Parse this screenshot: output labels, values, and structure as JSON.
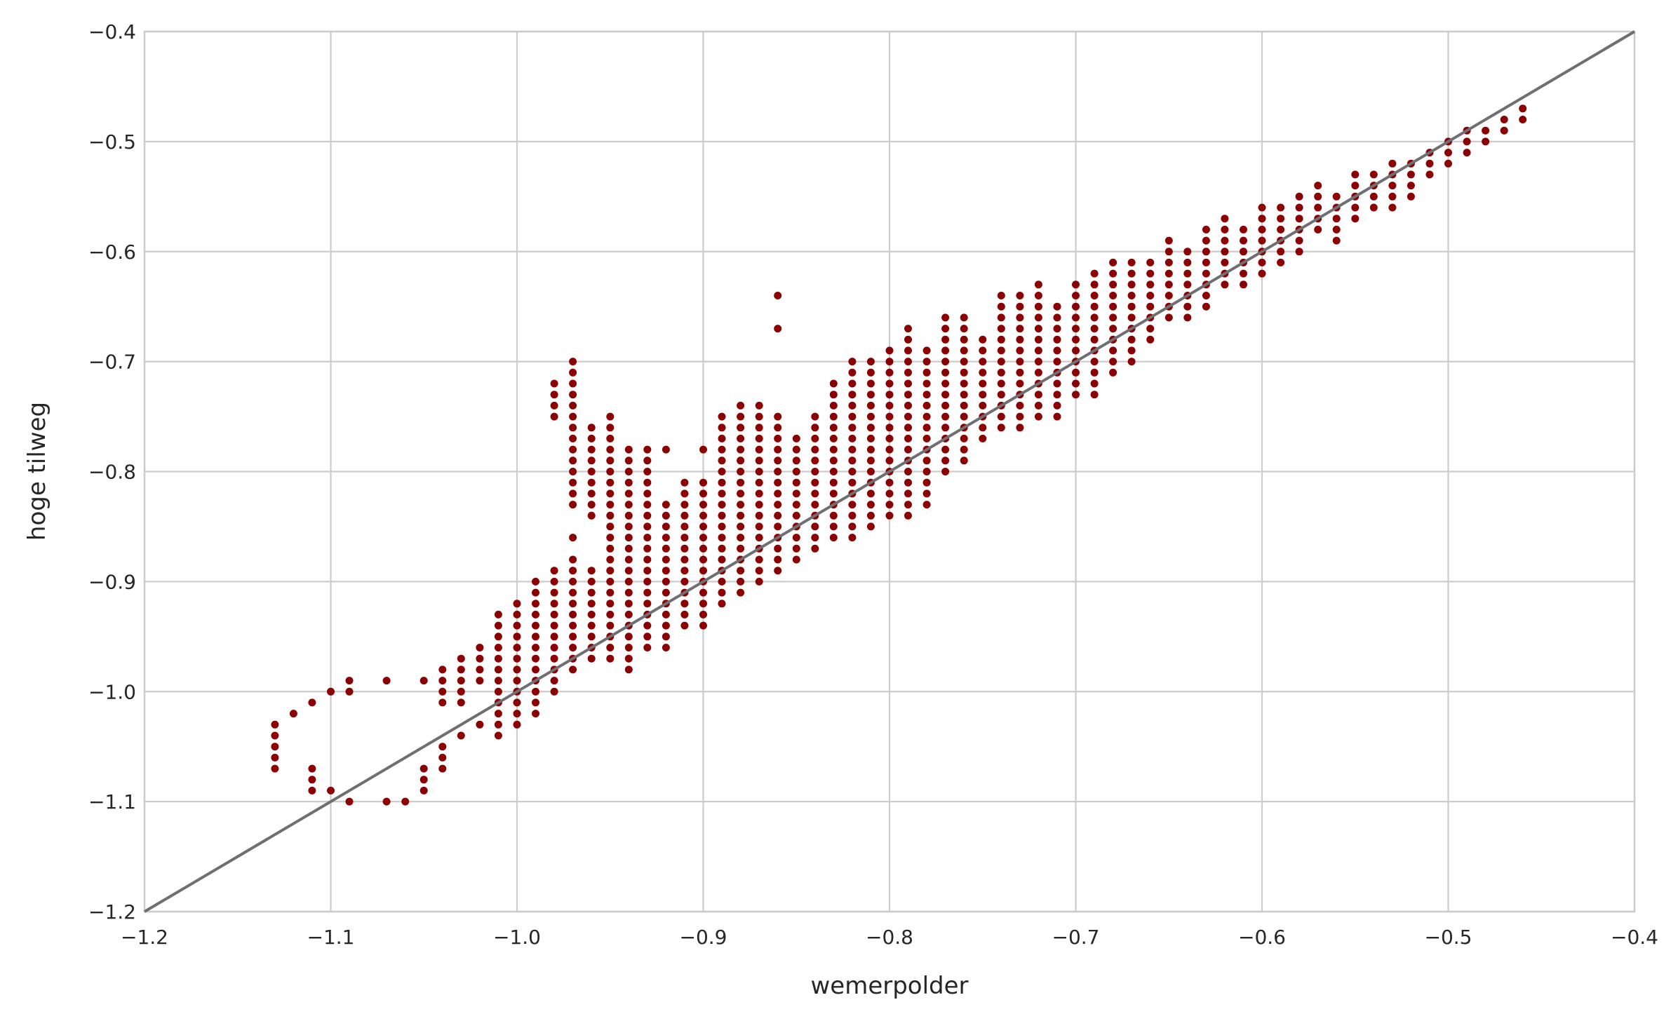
{
  "chart_data": {
    "type": "scatter",
    "title": "",
    "xlabel": "wemerpolder",
    "ylabel": "hoge tilweg",
    "xlim": [
      -1.2,
      -0.4
    ],
    "ylim": [
      -1.2,
      -0.4
    ],
    "xticks": [
      -1.2,
      -1.1,
      -1.0,
      -0.9,
      -0.8,
      -0.7,
      -0.6,
      -0.5,
      -0.4
    ],
    "yticks": [
      -1.2,
      -1.1,
      -1.0,
      -0.9,
      -0.8,
      -0.7,
      -0.6,
      -0.5,
      -0.4
    ],
    "xtick_labels": [
      "−1.2",
      "−1.1",
      "−1.0",
      "−0.9",
      "−0.8",
      "−0.7",
      "−0.6",
      "−0.5",
      "−0.4"
    ],
    "ytick_labels": [
      "−1.2",
      "−1.1",
      "−1.0",
      "−0.9",
      "−0.8",
      "−0.7",
      "−0.6",
      "−0.5",
      "−0.4"
    ],
    "grid": true,
    "marker_color": "#8b0000",
    "reference_line": {
      "from": [
        -1.2,
        -1.2
      ],
      "to": [
        -0.4,
        -0.4
      ],
      "color": "#6e6e73"
    },
    "columns": [
      {
        "x": -1.13,
        "y": [
          [
            -1.07,
            -1.03
          ]
        ]
      },
      {
        "x": -1.12,
        "y": [
          [
            -1.02,
            -1.02
          ]
        ]
      },
      {
        "x": -1.11,
        "y": [
          [
            -1.09,
            -1.07
          ],
          [
            -1.01,
            -1.01
          ]
        ]
      },
      {
        "x": -1.1,
        "y": [
          [
            -1.09,
            -1.09
          ],
          [
            -1.0,
            -1.0
          ]
        ]
      },
      {
        "x": -1.09,
        "y": [
          [
            -1.1,
            -1.1
          ],
          [
            -1.0,
            -0.99
          ]
        ]
      },
      {
        "x": -1.07,
        "y": [
          [
            -1.1,
            -1.1
          ],
          [
            -0.99,
            -0.99
          ]
        ]
      },
      {
        "x": -1.06,
        "y": [
          [
            -1.1,
            -1.1
          ]
        ]
      },
      {
        "x": -1.05,
        "y": [
          [
            -1.09,
            -1.07
          ],
          [
            -0.99,
            -0.99
          ]
        ]
      },
      {
        "x": -1.04,
        "y": [
          [
            -1.07,
            -1.05
          ],
          [
            -1.01,
            -0.98
          ]
        ]
      },
      {
        "x": -1.03,
        "y": [
          [
            -1.04,
            -1.04
          ],
          [
            -1.01,
            -0.97
          ]
        ]
      },
      {
        "x": -1.02,
        "y": [
          [
            -1.03,
            -1.03
          ],
          [
            -0.99,
            -0.96
          ]
        ]
      },
      {
        "x": -1.01,
        "y": [
          [
            -1.04,
            -0.93
          ]
        ]
      },
      {
        "x": -1.0,
        "y": [
          [
            -1.03,
            -0.92
          ]
        ]
      },
      {
        "x": -0.99,
        "y": [
          [
            -1.02,
            -0.9
          ]
        ]
      },
      {
        "x": -0.98,
        "y": [
          [
            -1.0,
            -0.89
          ],
          [
            -0.75,
            -0.72
          ]
        ]
      },
      {
        "x": -0.97,
        "y": [
          [
            -0.98,
            -0.88
          ],
          [
            -0.86,
            -0.86
          ],
          [
            -0.83,
            -0.7
          ]
        ]
      },
      {
        "x": -0.96,
        "y": [
          [
            -0.97,
            -0.89
          ],
          [
            -0.84,
            -0.76
          ]
        ]
      },
      {
        "x": -0.95,
        "y": [
          [
            -0.97,
            -0.75
          ]
        ]
      },
      {
        "x": -0.94,
        "y": [
          [
            -0.98,
            -0.78
          ]
        ]
      },
      {
        "x": -0.93,
        "y": [
          [
            -0.96,
            -0.78
          ]
        ]
      },
      {
        "x": -0.92,
        "y": [
          [
            -0.96,
            -0.83
          ],
          [
            -0.78,
            -0.78
          ]
        ]
      },
      {
        "x": -0.91,
        "y": [
          [
            -0.94,
            -0.81
          ]
        ]
      },
      {
        "x": -0.9,
        "y": [
          [
            -0.94,
            -0.81
          ],
          [
            -0.78,
            -0.78
          ]
        ]
      },
      {
        "x": -0.89,
        "y": [
          [
            -0.92,
            -0.75
          ]
        ]
      },
      {
        "x": -0.88,
        "y": [
          [
            -0.91,
            -0.74
          ]
        ]
      },
      {
        "x": -0.87,
        "y": [
          [
            -0.9,
            -0.74
          ]
        ]
      },
      {
        "x": -0.86,
        "y": [
          [
            -0.89,
            -0.75
          ],
          [
            -0.67,
            -0.67
          ],
          [
            -0.64,
            -0.64
          ]
        ]
      },
      {
        "x": -0.85,
        "y": [
          [
            -0.88,
            -0.77
          ]
        ]
      },
      {
        "x": -0.84,
        "y": [
          [
            -0.87,
            -0.75
          ]
        ]
      },
      {
        "x": -0.83,
        "y": [
          [
            -0.86,
            -0.72
          ]
        ]
      },
      {
        "x": -0.82,
        "y": [
          [
            -0.86,
            -0.7
          ]
        ]
      },
      {
        "x": -0.81,
        "y": [
          [
            -0.85,
            -0.7
          ]
        ]
      },
      {
        "x": -0.8,
        "y": [
          [
            -0.84,
            -0.69
          ]
        ]
      },
      {
        "x": -0.79,
        "y": [
          [
            -0.84,
            -0.67
          ]
        ]
      },
      {
        "x": -0.78,
        "y": [
          [
            -0.83,
            -0.69
          ]
        ]
      },
      {
        "x": -0.77,
        "y": [
          [
            -0.8,
            -0.66
          ]
        ]
      },
      {
        "x": -0.76,
        "y": [
          [
            -0.79,
            -0.66
          ]
        ]
      },
      {
        "x": -0.75,
        "y": [
          [
            -0.77,
            -0.68
          ]
        ]
      },
      {
        "x": -0.74,
        "y": [
          [
            -0.76,
            -0.64
          ]
        ]
      },
      {
        "x": -0.73,
        "y": [
          [
            -0.76,
            -0.64
          ]
        ]
      },
      {
        "x": -0.72,
        "y": [
          [
            -0.75,
            -0.63
          ]
        ]
      },
      {
        "x": -0.71,
        "y": [
          [
            -0.75,
            -0.65
          ]
        ]
      },
      {
        "x": -0.7,
        "y": [
          [
            -0.73,
            -0.63
          ]
        ]
      },
      {
        "x": -0.69,
        "y": [
          [
            -0.73,
            -0.62
          ]
        ]
      },
      {
        "x": -0.68,
        "y": [
          [
            -0.71,
            -0.61
          ]
        ]
      },
      {
        "x": -0.67,
        "y": [
          [
            -0.7,
            -0.61
          ]
        ]
      },
      {
        "x": -0.66,
        "y": [
          [
            -0.68,
            -0.61
          ]
        ]
      },
      {
        "x": -0.65,
        "y": [
          [
            -0.66,
            -0.59
          ]
        ]
      },
      {
        "x": -0.64,
        "y": [
          [
            -0.66,
            -0.6
          ]
        ]
      },
      {
        "x": -0.63,
        "y": [
          [
            -0.65,
            -0.58
          ]
        ]
      },
      {
        "x": -0.62,
        "y": [
          [
            -0.63,
            -0.57
          ]
        ]
      },
      {
        "x": -0.61,
        "y": [
          [
            -0.63,
            -0.58
          ]
        ]
      },
      {
        "x": -0.6,
        "y": [
          [
            -0.62,
            -0.56
          ]
        ]
      },
      {
        "x": -0.59,
        "y": [
          [
            -0.61,
            -0.56
          ]
        ]
      },
      {
        "x": -0.58,
        "y": [
          [
            -0.6,
            -0.55
          ]
        ]
      },
      {
        "x": -0.57,
        "y": [
          [
            -0.58,
            -0.54
          ]
        ]
      },
      {
        "x": -0.56,
        "y": [
          [
            -0.59,
            -0.55
          ]
        ]
      },
      {
        "x": -0.55,
        "y": [
          [
            -0.57,
            -0.53
          ]
        ]
      },
      {
        "x": -0.54,
        "y": [
          [
            -0.56,
            -0.53
          ]
        ]
      },
      {
        "x": -0.53,
        "y": [
          [
            -0.56,
            -0.52
          ]
        ]
      },
      {
        "x": -0.52,
        "y": [
          [
            -0.55,
            -0.52
          ]
        ]
      },
      {
        "x": -0.51,
        "y": [
          [
            -0.53,
            -0.51
          ]
        ]
      },
      {
        "x": -0.5,
        "y": [
          [
            -0.52,
            -0.5
          ]
        ]
      },
      {
        "x": -0.49,
        "y": [
          [
            -0.51,
            -0.49
          ]
        ]
      },
      {
        "x": -0.48,
        "y": [
          [
            -0.5,
            -0.49
          ]
        ]
      },
      {
        "x": -0.47,
        "y": [
          [
            -0.49,
            -0.48
          ]
        ]
      },
      {
        "x": -0.46,
        "y": [
          [
            -0.48,
            -0.47
          ]
        ]
      }
    ]
  }
}
